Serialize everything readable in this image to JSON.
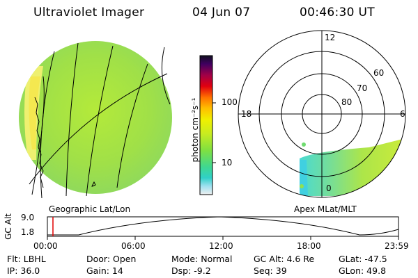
{
  "header": {
    "title": "Ultraviolet Imager",
    "date": "04 Jun 07",
    "time": "00:46:30 UT"
  },
  "colorbar": {
    "label": "photon cm⁻²s⁻¹",
    "ticks": [
      "100",
      "10"
    ]
  },
  "left_panel": {
    "caption": "Geographic Lat/Lon"
  },
  "right_panel": {
    "caption": "Apex  MLat/MLT",
    "mlt_labels": {
      "top": "12",
      "left": "18",
      "right": "6",
      "bottom": "0"
    },
    "lat_labels": [
      "60",
      "70",
      "80"
    ]
  },
  "timeline": {
    "ylabel": "GC Alt",
    "y_ticks": [
      "9.0",
      "1.8"
    ],
    "x_ticks": [
      "00:00",
      "06:00",
      "12:00",
      "18:00",
      "23:59"
    ],
    "marker_time": "00:46:30"
  },
  "info": {
    "flt": "Flt: LBHL",
    "ip": "IP: 36.0",
    "door": "Door: Open",
    "gain": "Gain: 14",
    "mode": "Mode: Normal",
    "dsp": "Dsp:    -9.2",
    "gc_alt": "GC Alt: 4.6 Re",
    "seq": "Seq: 39",
    "glat": "GLat: -47.5",
    "glon": "GLon:  49.8"
  },
  "colors": {
    "marker": "#e00000",
    "disk": "#9fe040"
  }
}
